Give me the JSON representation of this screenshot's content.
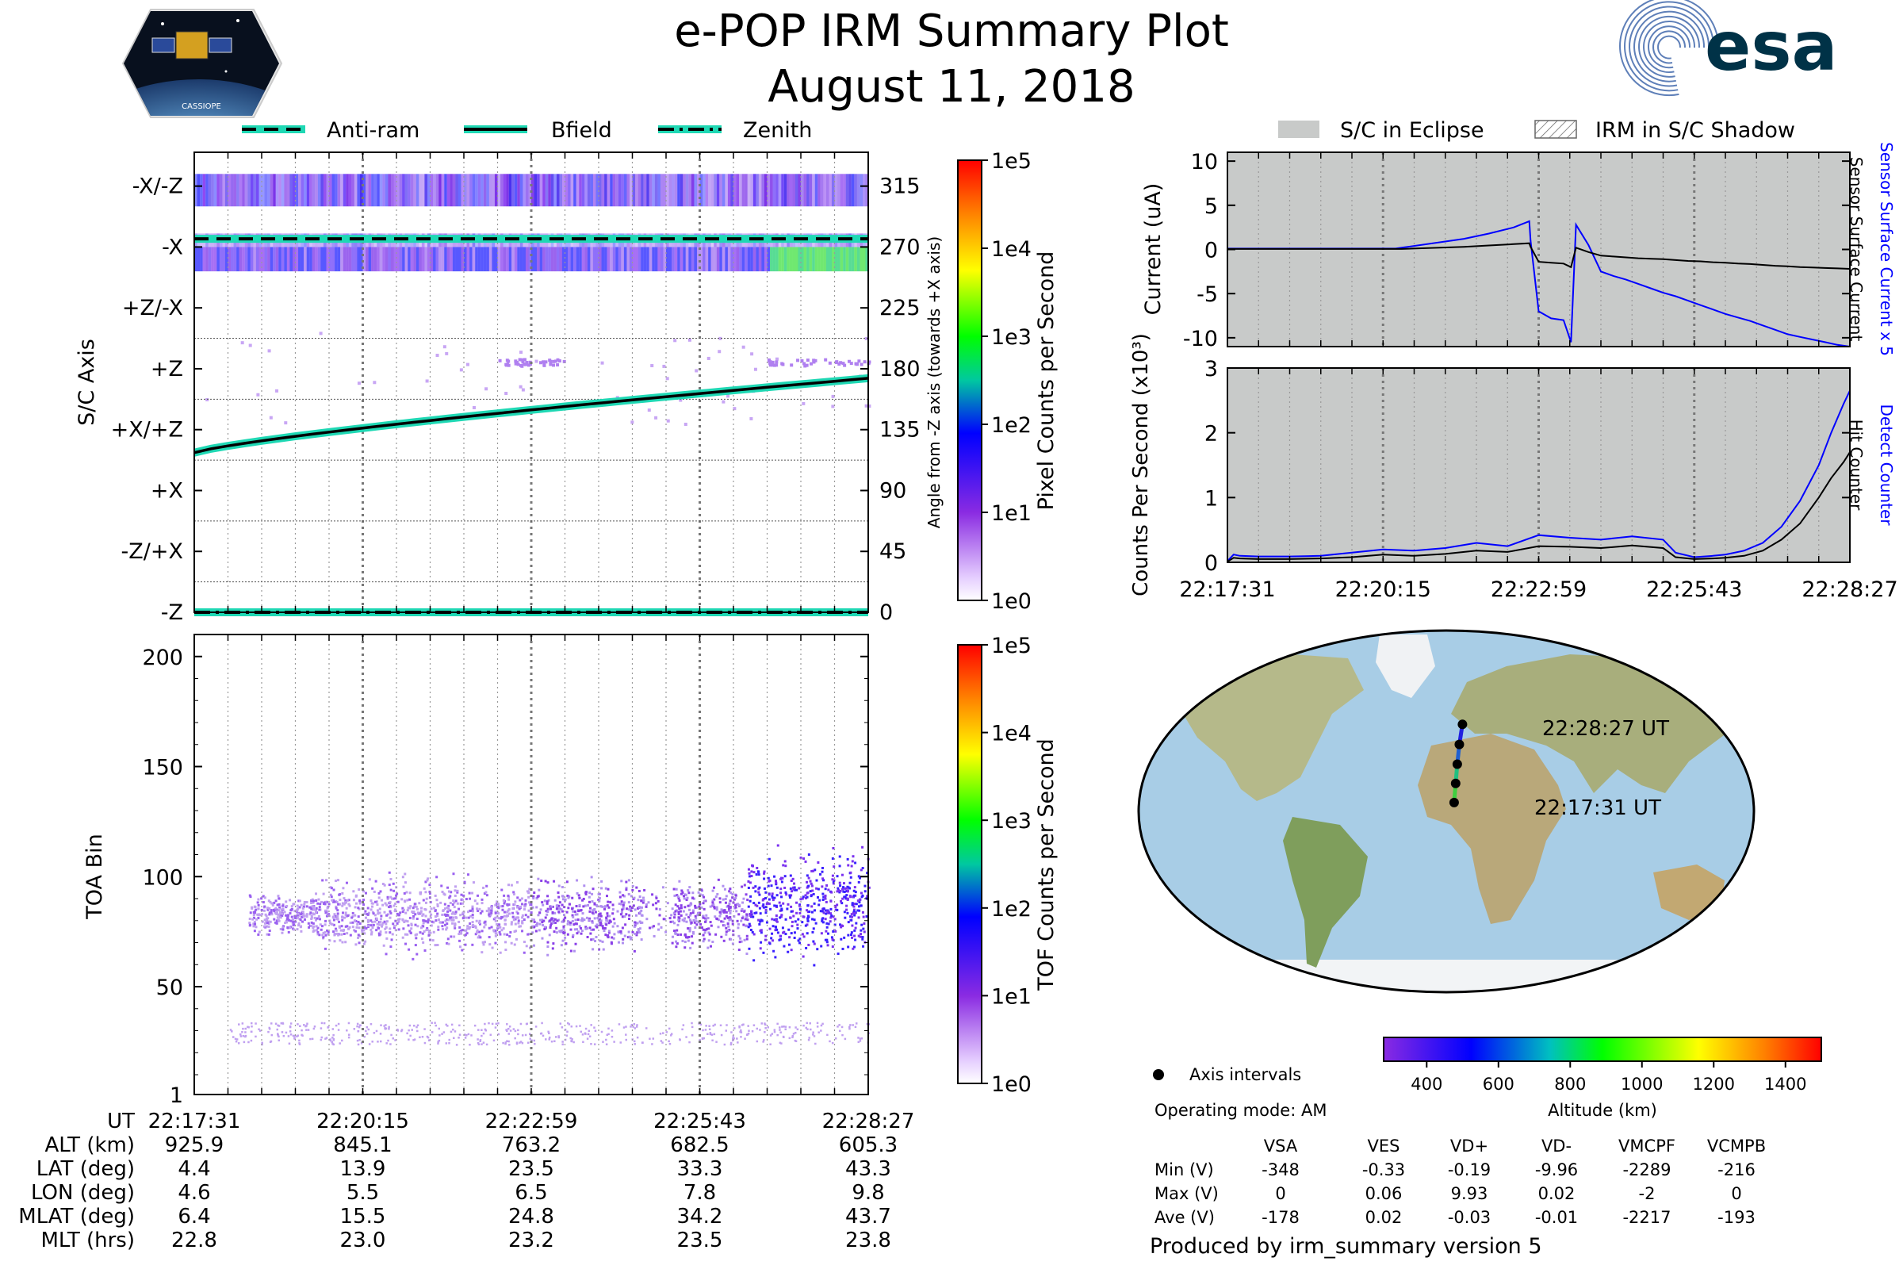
{
  "header": {
    "title": "e-POP IRM Summary Plot",
    "subtitle": "August 11, 2018",
    "left_logo_text": "CASSIOPE",
    "right_logo_text": "esa"
  },
  "colors": {
    "turquoise": "#1fd8b4",
    "blue": "#0000ff",
    "eclipse_gray": "#c8cac9",
    "frame": "#000000"
  },
  "legends": {
    "axis_lines": [
      {
        "label": "Anti-ram",
        "style": "dashed"
      },
      {
        "label": "Bfield",
        "style": "solid"
      },
      {
        "label": "Zenith",
        "style": "dashdot"
      }
    ],
    "eclipse": [
      {
        "label": "S/C in Eclipse",
        "style": "gray-fill"
      },
      {
        "label": "IRM in S/C Shadow",
        "style": "hatch"
      }
    ]
  },
  "chart_data": [
    {
      "type": "heatmap",
      "id": "sc_axis",
      "ylabel": "S/C Axis",
      "y_right_label": "Angle from -Z axis (towards +X axis)",
      "y_categories": [
        "-X/-Z",
        "-X",
        "+Z/-X",
        "+Z",
        "+X/+Z",
        "+X",
        "-Z/+X",
        "-Z"
      ],
      "y_right_ticks": [
        315,
        270,
        225,
        180,
        135,
        90,
        45,
        0
      ],
      "ylim": [
        0,
        340
      ],
      "colorbar": {
        "label": "Pixel Counts per Second",
        "ticks": [
          "1e0",
          "1e1",
          "1e2",
          "1e3",
          "1e4",
          "1e5"
        ],
        "scale": "log"
      },
      "bfield_angle_start": 118,
      "bfield_angle_end": 173,
      "antiram_angle": 276,
      "zenith_angle": 0
    },
    {
      "type": "heatmap",
      "id": "toa",
      "ylabel": "TOA Bin",
      "y_ticks": [
        1,
        50,
        100,
        150,
        200
      ],
      "ylim": [
        1,
        210
      ],
      "colorbar": {
        "label": "TOF Counts per Second",
        "ticks": [
          "1e0",
          "1e1",
          "1e2",
          "1e3",
          "1e4",
          "1e5"
        ],
        "scale": "log"
      }
    },
    {
      "type": "line",
      "id": "current",
      "ylabel": "Current (uA)",
      "y_ticks": [
        10,
        5,
        0,
        -5,
        -10
      ],
      "ylim": [
        -11,
        11
      ],
      "right_labels": [
        {
          "text": "Sensor Surface Current x 5",
          "color": "blue"
        },
        {
          "text": "Sensor Surface Current",
          "color": "black"
        }
      ],
      "x_fraction": [
        0,
        0.1,
        0.2,
        0.27,
        0.28,
        0.38,
        0.42,
        0.46,
        0.485,
        0.487,
        0.5,
        0.52,
        0.54,
        0.552,
        0.56,
        0.58,
        0.6,
        0.62,
        0.64,
        0.66,
        0.68,
        0.7,
        0.72,
        0.74,
        0.76,
        0.78,
        0.8,
        0.82,
        0.84,
        0.86,
        0.88,
        0.9,
        0.92,
        0.94,
        0.96,
        0.98,
        1.0
      ],
      "series": [
        {
          "name": "Sensor Surface Current x 5",
          "color": "blue",
          "values": [
            0.1,
            0.1,
            0.1,
            0.1,
            0.2,
            1.2,
            1.8,
            2.5,
            3.2,
            1.0,
            -7.0,
            -7.8,
            -8.0,
            -10.5,
            2.8,
            0.5,
            -2.5,
            -3.0,
            -3.4,
            -3.9,
            -4.4,
            -4.9,
            -5.3,
            -5.8,
            -6.3,
            -6.8,
            -7.3,
            -7.7,
            -8.1,
            -8.6,
            -9.1,
            -9.6,
            -9.9,
            -10.2,
            -10.5,
            -10.8,
            -11.0
          ]
        },
        {
          "name": "Sensor Surface Current",
          "color": "black",
          "values": [
            0.05,
            0.05,
            0.05,
            0.05,
            0.05,
            0.3,
            0.45,
            0.6,
            0.7,
            0.3,
            -1.4,
            -1.5,
            -1.6,
            -2.0,
            0.2,
            -0.3,
            -0.7,
            -0.8,
            -0.9,
            -1.0,
            -1.05,
            -1.1,
            -1.2,
            -1.3,
            -1.35,
            -1.45,
            -1.5,
            -1.6,
            -1.65,
            -1.75,
            -1.85,
            -1.9,
            -2.0,
            -2.05,
            -2.1,
            -2.15,
            -2.2
          ]
        }
      ]
    },
    {
      "type": "line",
      "id": "counts",
      "ylabel": "Counts Per Second (x10³)",
      "y_ticks": [
        3,
        2,
        1,
        0
      ],
      "ylim": [
        0,
        3
      ],
      "right_labels": [
        {
          "text": "Detect Counter",
          "color": "blue"
        },
        {
          "text": "Hit Counter",
          "color": "black"
        }
      ],
      "x_fraction": [
        0,
        0.01,
        0.02,
        0.05,
        0.1,
        0.15,
        0.2,
        0.25,
        0.3,
        0.35,
        0.4,
        0.45,
        0.5,
        0.55,
        0.6,
        0.65,
        0.7,
        0.72,
        0.75,
        0.78,
        0.8,
        0.83,
        0.86,
        0.89,
        0.92,
        0.95,
        0.97,
        0.99,
        1.0
      ],
      "series": [
        {
          "name": "Detect Counter",
          "color": "blue",
          "values": [
            0.02,
            0.12,
            0.1,
            0.09,
            0.09,
            0.1,
            0.15,
            0.2,
            0.18,
            0.22,
            0.3,
            0.25,
            0.42,
            0.38,
            0.35,
            0.4,
            0.35,
            0.15,
            0.08,
            0.1,
            0.12,
            0.18,
            0.3,
            0.55,
            0.95,
            1.5,
            2.0,
            2.45,
            2.65
          ]
        },
        {
          "name": "Hit Counter",
          "color": "black",
          "values": [
            0.01,
            0.07,
            0.06,
            0.05,
            0.05,
            0.06,
            0.08,
            0.12,
            0.1,
            0.13,
            0.18,
            0.16,
            0.25,
            0.24,
            0.22,
            0.26,
            0.22,
            0.08,
            0.05,
            0.06,
            0.07,
            0.1,
            0.18,
            0.35,
            0.6,
            1.0,
            1.3,
            1.55,
            1.7
          ]
        }
      ]
    }
  ],
  "time_ticks": [
    "22:17:31",
    "22:20:15",
    "22:22:59",
    "22:25:43",
    "22:28:27"
  ],
  "ephemeris": {
    "row_labels": [
      "UT",
      "ALT (km)",
      "LAT (deg)",
      "LON (deg)",
      "MLAT (deg)",
      "MLT (hrs)"
    ],
    "columns": [
      [
        "22:17:31",
        "925.9",
        "4.4",
        "4.6",
        "6.4",
        "22.8"
      ],
      [
        "22:20:15",
        "845.1",
        "13.9",
        "5.5",
        "15.5",
        "23.0"
      ],
      [
        "22:22:59",
        "763.2",
        "23.5",
        "6.5",
        "24.8",
        "23.2"
      ],
      [
        "22:25:43",
        "682.5",
        "33.3",
        "7.8",
        "34.2",
        "23.5"
      ],
      [
        "22:28:27",
        "605.3",
        "43.3",
        "9.8",
        "43.7",
        "23.8"
      ]
    ]
  },
  "map": {
    "start_label": "22:17:31 UT",
    "end_label": "22:28:27 UT",
    "track_lat": [
      4.4,
      13.9,
      23.5,
      33.3,
      43.3
    ],
    "track_lon": [
      4.6,
      5.5,
      6.5,
      7.8,
      9.8
    ],
    "legend_axis_intervals": "Axis intervals",
    "operating_mode": "Operating mode: AM",
    "altitude_colorbar": {
      "label": "Altitude (km)",
      "ticks": [
        "400",
        "600",
        "800",
        "1000",
        "1200",
        "1400"
      ]
    }
  },
  "voltage_table": {
    "columns": [
      "VSA",
      "VES",
      "VD+",
      "VD-",
      "VMCPF",
      "VCMPB"
    ],
    "rows": [
      {
        "label": "Min (V)",
        "values": [
          "-348",
          "-0.33",
          "-0.19",
          "-9.96",
          "-2289",
          "-216"
        ]
      },
      {
        "label": "Max (V)",
        "values": [
          "0",
          "0.06",
          "9.93",
          "0.02",
          "-2",
          "0"
        ]
      },
      {
        "label": "Ave (V)",
        "values": [
          "-178",
          "0.02",
          "-0.03",
          "-0.01",
          "-2217",
          "-193"
        ]
      }
    ]
  },
  "footer": "Produced by irm_summary version 5"
}
